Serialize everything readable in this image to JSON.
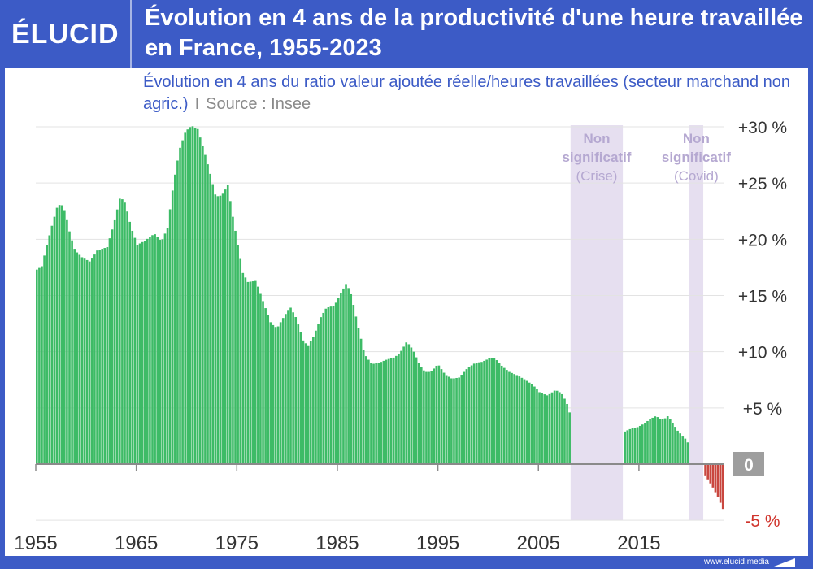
{
  "brand": {
    "logo": "ÉLUCID",
    "url": "www.elucid.media"
  },
  "header": {
    "title": "Évolution en 4 ans de la productivité d'une heure travaillée en France, 1955-2023"
  },
  "subtitle": {
    "text": "Évolution en 4 ans du ratio valeur ajoutée réelle/heures travaillées (secteur marchand non agric.)",
    "separator": "I",
    "source": "Source : Insee"
  },
  "colors": {
    "positive": "#3dbb66",
    "negative": "#c9473f",
    "shade": "#e6dff0",
    "shade_text": "#b5a8d1",
    "zero_badge": "#9e9e9e",
    "brand": "#3c5bc6"
  },
  "chart_data": {
    "type": "bar",
    "x_start": 1955,
    "x_end": 2023.5,
    "bars_per_year": 4,
    "xticks": [
      1955,
      1965,
      1975,
      1985,
      1995,
      2005,
      2015
    ],
    "xtick_labels": [
      "1955",
      "1965",
      "1975",
      "1985",
      "1995",
      "2005",
      "2015"
    ],
    "yticks": [
      -5,
      5,
      10,
      15,
      20,
      25,
      30
    ],
    "ytick_labels": [
      "-5 %",
      "+5 %",
      "+10 %",
      "+15 %",
      "+20 %",
      "+25 %",
      "+30 %"
    ],
    "zero_label": "0",
    "ylim": [
      -5,
      30
    ],
    "grid": true,
    "shaded_regions": [
      {
        "from": 2008.2,
        "to": 2013.4,
        "label_line1": "Non",
        "label_line2": "significatif",
        "label_line3": "(Crise)"
      },
      {
        "from": 2020.0,
        "to": 2021.4,
        "label_line1": "Non",
        "label_line2": "significatif",
        "label_line3": "(Covid)"
      }
    ],
    "series_points": [
      [
        1955,
        17.3
      ],
      [
        1955.5,
        17.6
      ],
      [
        1956.0,
        19.5
      ],
      [
        1956.5,
        21.2
      ],
      [
        1957.0,
        22.8
      ],
      [
        1957.4,
        23.2
      ],
      [
        1957.8,
        22.5
      ],
      [
        1958.3,
        20.5
      ],
      [
        1958.8,
        19.0
      ],
      [
        1959.5,
        18.4
      ],
      [
        1960.3,
        18.0
      ],
      [
        1961.0,
        19.0
      ],
      [
        1962.0,
        19.3
      ],
      [
        1962.7,
        21.5
      ],
      [
        1963.3,
        23.8
      ],
      [
        1963.8,
        23.2
      ],
      [
        1964.4,
        21.0
      ],
      [
        1965.0,
        19.5
      ],
      [
        1965.8,
        19.9
      ],
      [
        1966.7,
        20.5
      ],
      [
        1967.4,
        19.8
      ],
      [
        1968.0,
        21.0
      ],
      [
        1968.6,
        25.0
      ],
      [
        1969.2,
        28.0
      ],
      [
        1969.8,
        29.6
      ],
      [
        1970.4,
        30.1
      ],
      [
        1971.0,
        29.8
      ],
      [
        1971.6,
        28.0
      ],
      [
        1972.2,
        26.0
      ],
      [
        1972.8,
        23.8
      ],
      [
        1973.4,
        23.9
      ],
      [
        1974.0,
        24.8
      ],
      [
        1974.5,
        22.0
      ],
      [
        1975.0,
        19.5
      ],
      [
        1975.5,
        17.0
      ],
      [
        1976.0,
        16.2
      ],
      [
        1976.8,
        16.3
      ],
      [
        1977.5,
        14.5
      ],
      [
        1978.3,
        12.5
      ],
      [
        1978.9,
        12.1
      ],
      [
        1979.5,
        13.0
      ],
      [
        1980.2,
        14.0
      ],
      [
        1980.8,
        13.0
      ],
      [
        1981.5,
        11.0
      ],
      [
        1982.0,
        10.5
      ],
      [
        1982.6,
        11.5
      ],
      [
        1983.2,
        13.0
      ],
      [
        1983.8,
        13.9
      ],
      [
        1984.6,
        14.1
      ],
      [
        1985.3,
        15.3
      ],
      [
        1985.8,
        16.1
      ],
      [
        1986.3,
        15.0
      ],
      [
        1986.9,
        12.5
      ],
      [
        1987.6,
        9.8
      ],
      [
        1988.3,
        8.9
      ],
      [
        1989.0,
        9.0
      ],
      [
        1989.8,
        9.3
      ],
      [
        1990.6,
        9.5
      ],
      [
        1991.2,
        10.0
      ],
      [
        1991.8,
        10.9
      ],
      [
        1992.4,
        10.2
      ],
      [
        1993.0,
        9.0
      ],
      [
        1993.6,
        8.2
      ],
      [
        1994.2,
        8.2
      ],
      [
        1994.9,
        8.9
      ],
      [
        1995.6,
        8.0
      ],
      [
        1996.3,
        7.6
      ],
      [
        1997.0,
        7.7
      ],
      [
        1997.8,
        8.5
      ],
      [
        1998.6,
        9.0
      ],
      [
        1999.3,
        9.1
      ],
      [
        2000.0,
        9.4
      ],
      [
        2000.6,
        9.4
      ],
      [
        2001.3,
        8.7
      ],
      [
        2002.0,
        8.2
      ],
      [
        2002.8,
        7.9
      ],
      [
        2003.6,
        7.5
      ],
      [
        2004.4,
        7.0
      ],
      [
        2005.0,
        6.4
      ],
      [
        2005.8,
        6.1
      ],
      [
        2006.6,
        6.6
      ],
      [
        2007.2,
        6.3
      ],
      [
        2007.7,
        5.5
      ],
      [
        2008.2,
        4.0
      ],
      [
        2013.5,
        2.9
      ],
      [
        2014.2,
        3.2
      ],
      [
        2014.8,
        3.3
      ],
      [
        2015.4,
        3.6
      ],
      [
        2016.0,
        4.0
      ],
      [
        2016.6,
        4.3
      ],
      [
        2017.0,
        4.0
      ],
      [
        2017.4,
        4.0
      ],
      [
        2017.8,
        4.3
      ],
      [
        2018.3,
        3.6
      ],
      [
        2018.8,
        2.9
      ],
      [
        2019.4,
        2.4
      ],
      [
        2020.0,
        1.6
      ],
      [
        2021.5,
        -1.0
      ],
      [
        2022.2,
        -2.0
      ],
      [
        2022.8,
        -3.0
      ],
      [
        2023.3,
        -4.1
      ],
      [
        2023.5,
        -4.2
      ]
    ]
  }
}
